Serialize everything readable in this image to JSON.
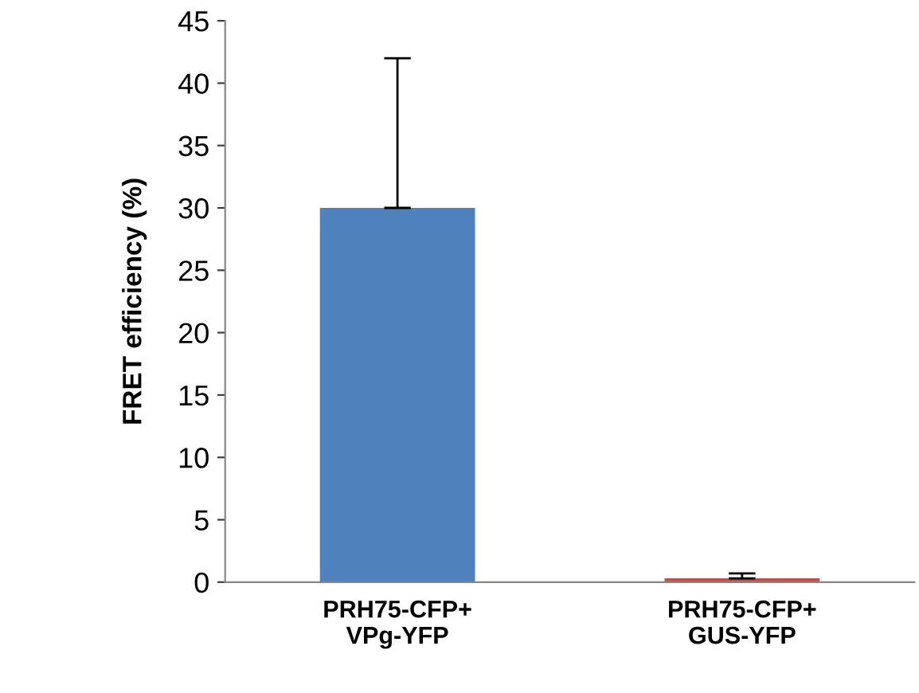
{
  "chart_data": {
    "type": "bar",
    "ylabel": "FRET efficiency (%)",
    "categories": [
      "PRH75-CFP+\nVPg-YFP",
      "PRH75-CFP+\nGUS-YFP"
    ],
    "values": [
      30,
      0.3
    ],
    "colors": [
      "#4f81bd",
      "#c0504d"
    ],
    "errors": [
      [
        30,
        42
      ],
      [
        0.3,
        0.7
      ]
    ],
    "ylim": [
      0,
      45
    ],
    "yticks": [
      0,
      5,
      10,
      15,
      20,
      25,
      30,
      35,
      40,
      45
    ],
    "grid": false,
    "legend": false
  }
}
